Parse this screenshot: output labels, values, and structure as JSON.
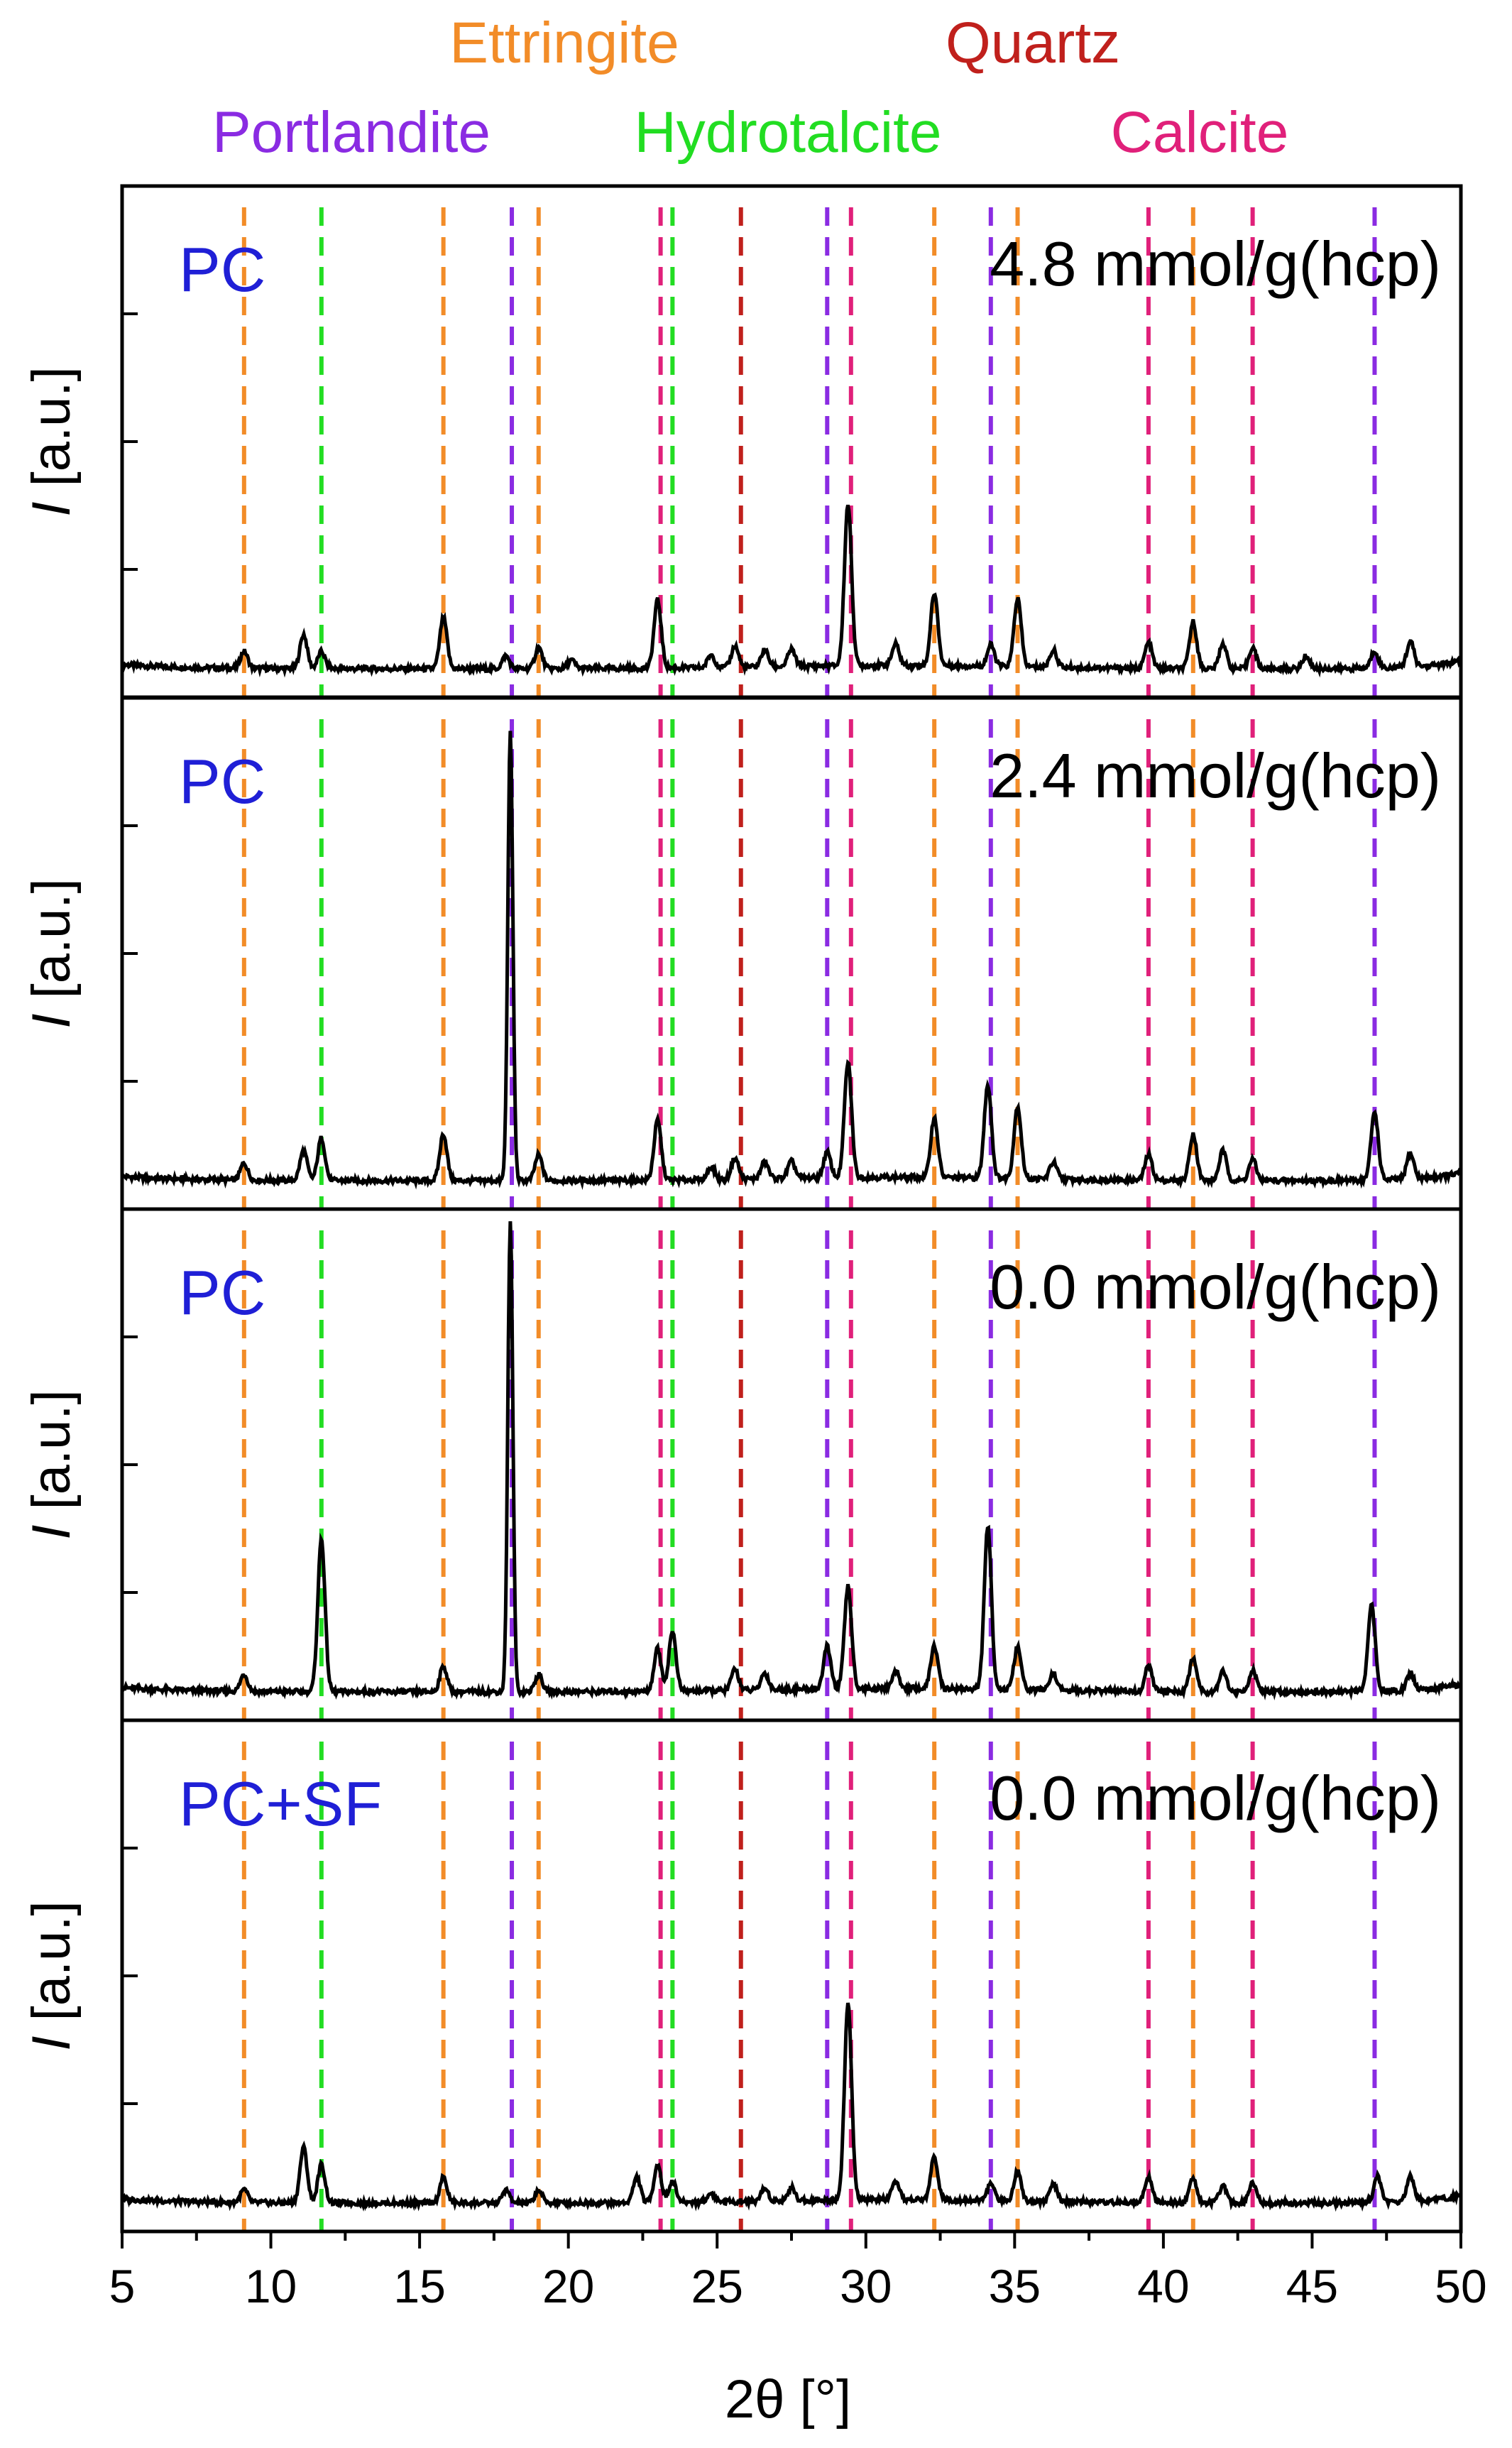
{
  "chart_data": {
    "type": "line",
    "title": "",
    "xlabel": "2θ [°]",
    "ylabel_italic": "I",
    "ylabel_unit": " [a.u.]",
    "xlim": [
      5,
      50
    ],
    "xticks": [
      5,
      10,
      15,
      20,
      25,
      30,
      35,
      40,
      45,
      50
    ],
    "phases": [
      {
        "name": "Ettringite",
        "color": "#f28c28",
        "positions": [
          9.1,
          15.8,
          19.0,
          32.3,
          35.1,
          41.0
        ]
      },
      {
        "name": "Quartz",
        "color": "#c0201c",
        "positions": [
          25.8
        ]
      },
      {
        "name": "Portlandite",
        "color": "#8a2be2",
        "positions": [
          18.1,
          28.7,
          34.2,
          47.1
        ]
      },
      {
        "name": "Hydrotalcite",
        "color": "#22dd22",
        "positions": [
          11.7,
          23.5
        ]
      },
      {
        "name": "Calcite",
        "color": "#e0207a",
        "positions": [
          23.1,
          29.5,
          39.5,
          43.0
        ]
      }
    ],
    "series": [
      {
        "name": "PC 4.8 mmol/g(hcp)",
        "sample": "PC",
        "concentration": "4.8 mmol/g(hcp)",
        "baseline": 0.04,
        "peaks": [
          [
            9.1,
            0.04
          ],
          [
            11.1,
            0.08
          ],
          [
            11.7,
            0.04
          ],
          [
            15.8,
            0.12
          ],
          [
            17.9,
            0.03
          ],
          [
            19.0,
            0.05
          ],
          [
            20.1,
            0.02
          ],
          [
            23.0,
            0.16
          ],
          [
            24.8,
            0.03
          ],
          [
            25.6,
            0.05
          ],
          [
            26.6,
            0.04
          ],
          [
            27.5,
            0.04
          ],
          [
            29.4,
            0.38
          ],
          [
            31.0,
            0.05
          ],
          [
            32.3,
            0.17
          ],
          [
            34.2,
            0.05
          ],
          [
            35.1,
            0.16
          ],
          [
            36.3,
            0.04
          ],
          [
            39.5,
            0.06
          ],
          [
            41.0,
            0.11
          ],
          [
            42.0,
            0.06
          ],
          [
            43.0,
            0.05
          ],
          [
            44.8,
            0.03
          ],
          [
            47.1,
            0.04
          ],
          [
            48.3,
            0.06
          ]
        ]
      },
      {
        "name": "PC 2.4 mmol/g(hcp)",
        "sample": "PC",
        "concentration": "2.4 mmol/g(hcp)",
        "baseline": 0.04,
        "peaks": [
          [
            9.1,
            0.04
          ],
          [
            11.1,
            0.07
          ],
          [
            11.7,
            0.1
          ],
          [
            15.8,
            0.11
          ],
          [
            18.05,
            1.05
          ],
          [
            19.0,
            0.06
          ],
          [
            23.0,
            0.14
          ],
          [
            24.8,
            0.03
          ],
          [
            25.6,
            0.05
          ],
          [
            26.6,
            0.04
          ],
          [
            27.5,
            0.04
          ],
          [
            28.7,
            0.06
          ],
          [
            29.4,
            0.27
          ],
          [
            32.3,
            0.14
          ],
          [
            34.1,
            0.22
          ],
          [
            35.1,
            0.17
          ],
          [
            36.3,
            0.04
          ],
          [
            39.5,
            0.06
          ],
          [
            41.0,
            0.11
          ],
          [
            42.0,
            0.07
          ],
          [
            43.0,
            0.05
          ],
          [
            47.1,
            0.16
          ],
          [
            48.3,
            0.06
          ]
        ]
      },
      {
        "name": "PC 0.0 mmol/g(hcp)",
        "sample": "PC",
        "concentration": "0.0 mmol/g(hcp)",
        "baseline": 0.03,
        "peaks": [
          [
            9.1,
            0.04
          ],
          [
            11.7,
            0.36
          ],
          [
            15.8,
            0.06
          ],
          [
            18.05,
            1.1
          ],
          [
            19.0,
            0.04
          ],
          [
            23.0,
            0.1
          ],
          [
            23.5,
            0.14
          ],
          [
            25.6,
            0.05
          ],
          [
            26.6,
            0.04
          ],
          [
            28.7,
            0.1
          ],
          [
            29.4,
            0.24
          ],
          [
            31.0,
            0.04
          ],
          [
            32.3,
            0.1
          ],
          [
            34.1,
            0.38
          ],
          [
            35.1,
            0.1
          ],
          [
            36.3,
            0.04
          ],
          [
            39.5,
            0.06
          ],
          [
            41.0,
            0.08
          ],
          [
            42.0,
            0.05
          ],
          [
            43.0,
            0.05
          ],
          [
            47.0,
            0.2
          ],
          [
            48.3,
            0.04
          ]
        ]
      },
      {
        "name": "PC+SF 0.0 mmol/g(hcp)",
        "sample": "PC+SF",
        "concentration": "0.0 mmol/g(hcp)",
        "baseline": 0.03,
        "peaks": [
          [
            9.1,
            0.03
          ],
          [
            11.1,
            0.13
          ],
          [
            11.7,
            0.09
          ],
          [
            15.8,
            0.06
          ],
          [
            17.9,
            0.03
          ],
          [
            19.0,
            0.03
          ],
          [
            22.3,
            0.06
          ],
          [
            23.0,
            0.09
          ],
          [
            23.5,
            0.05
          ],
          [
            24.8,
            0.02
          ],
          [
            26.6,
            0.03
          ],
          [
            27.5,
            0.03
          ],
          [
            29.4,
            0.46
          ],
          [
            31.0,
            0.04
          ],
          [
            32.3,
            0.1
          ],
          [
            34.2,
            0.04
          ],
          [
            35.1,
            0.07
          ],
          [
            36.3,
            0.04
          ],
          [
            39.5,
            0.06
          ],
          [
            41.0,
            0.06
          ],
          [
            42.0,
            0.04
          ],
          [
            43.0,
            0.05
          ],
          [
            47.2,
            0.06
          ],
          [
            48.3,
            0.06
          ]
        ]
      }
    ]
  }
}
